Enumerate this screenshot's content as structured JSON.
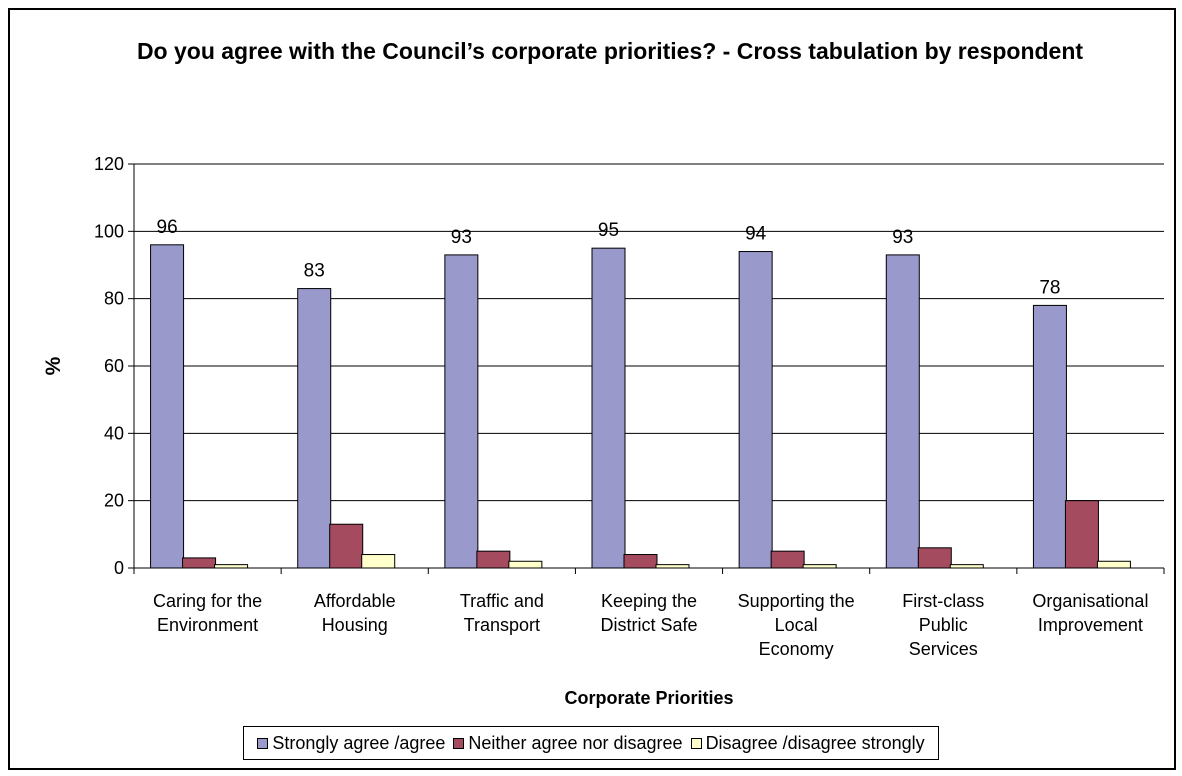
{
  "chart_data": {
    "type": "bar",
    "title": "Do you agree with the Council’s corporate priorities? - Cross tabulation by respondent",
    "xlabel": "Corporate Priorities",
    "ylabel": "%",
    "ylim": [
      0,
      120
    ],
    "yticks": [
      0,
      20,
      40,
      60,
      80,
      100,
      120
    ],
    "grid": true,
    "legend_position": "bottom",
    "categories": [
      [
        "Caring for the",
        "Environment"
      ],
      [
        "Affordable",
        "Housing"
      ],
      [
        "Traffic and",
        "Transport"
      ],
      [
        "Keeping the",
        "District Safe"
      ],
      [
        "Supporting the",
        "Local",
        "Economy"
      ],
      [
        "First-class",
        "Public",
        "Services"
      ],
      [
        "Organisational",
        "Improvement"
      ]
    ],
    "series": [
      {
        "name": "Strongly agree /agree",
        "color": "#9999cc",
        "values": [
          96,
          83,
          93,
          95,
          94,
          93,
          78
        ],
        "labels": [
          "96",
          "83",
          "93",
          "95",
          "94",
          "93",
          "78"
        ]
      },
      {
        "name": "Neither agree nor disagree",
        "color": "#a44b5f",
        "values": [
          3,
          13,
          5,
          4,
          5,
          6,
          20
        ]
      },
      {
        "name": "Disagree /disagree strongly",
        "color": "#ffffcc",
        "values": [
          1,
          4,
          2,
          1,
          1,
          1,
          2
        ]
      }
    ]
  }
}
